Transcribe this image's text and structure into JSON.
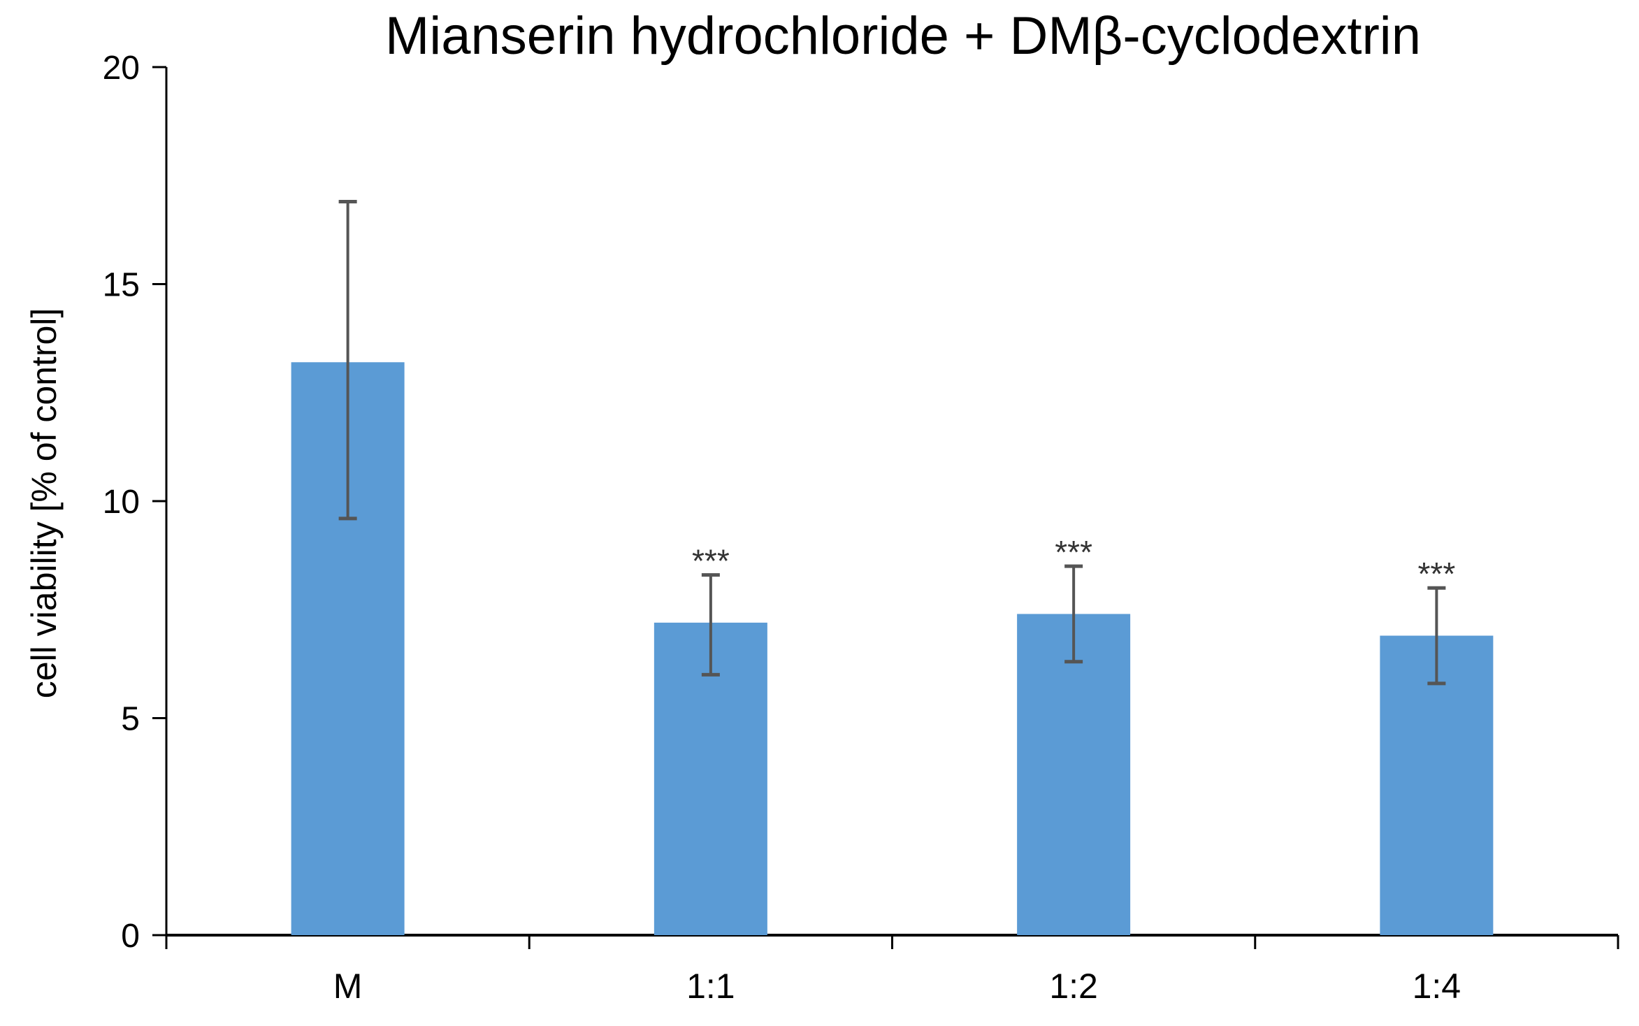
{
  "chart_data": {
    "type": "bar",
    "title": "Mianserin hydrochloride + DMβ-cyclodextrin",
    "xlabel": "",
    "ylabel": "cell viability [% of control]",
    "categories": [
      "M",
      "1:1",
      "1:2",
      "1:4"
    ],
    "values": [
      13.2,
      7.2,
      7.4,
      6.9
    ],
    "error_low": [
      9.6,
      6.0,
      6.3,
      5.8
    ],
    "error_high": [
      16.9,
      8.3,
      8.5,
      8.0
    ],
    "annotations": [
      "",
      "***",
      "***",
      "***"
    ],
    "ylim": [
      0,
      20
    ],
    "yticks": [
      0,
      5,
      10,
      15,
      20
    ],
    "ytick_labels": [
      "0",
      "5",
      "10",
      "15",
      "20"
    ],
    "grid": false,
    "legend": "none",
    "colors": {
      "bar": "#5B9BD5",
      "error_bar": "#555555",
      "axis": "#000000",
      "text": "#000000",
      "annotation": "#333333"
    }
  }
}
